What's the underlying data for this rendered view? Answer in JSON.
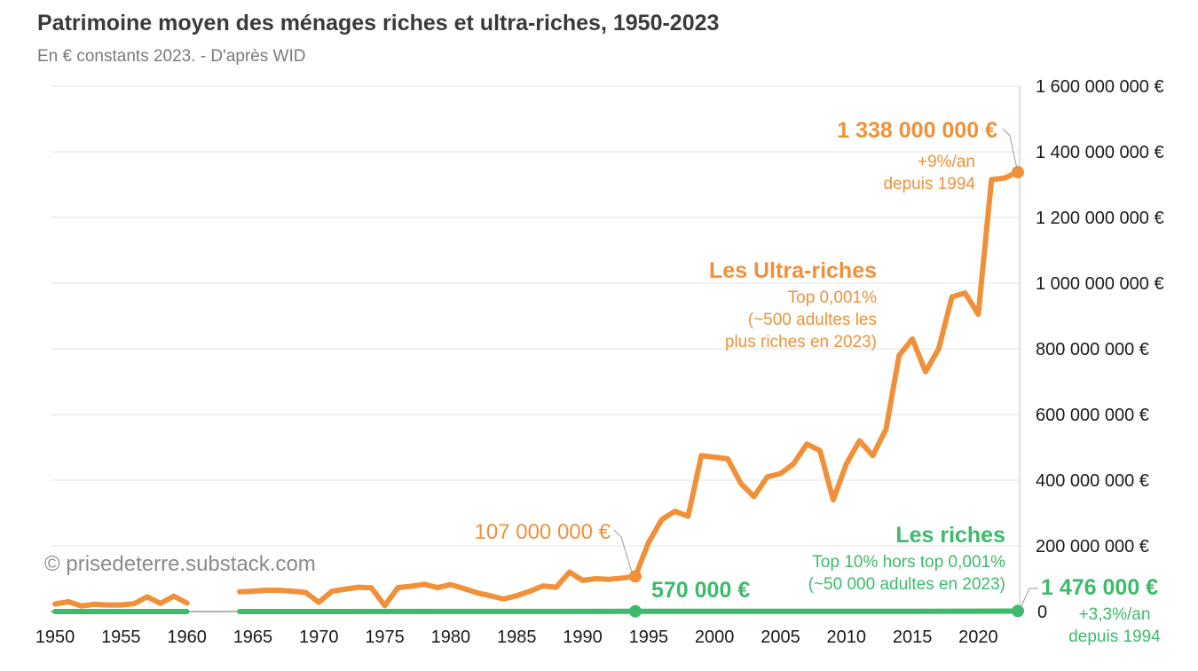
{
  "chart_data": {
    "type": "line",
    "title": "Patrimoine moyen des ménages riches et ultra-riches, 1950-2023",
    "subtitle": "En € constants 2023. - D'après WID",
    "ylim": [
      0,
      1600000000
    ],
    "xlim": [
      1950,
      2023
    ],
    "x_ticks": [
      1950,
      1955,
      1960,
      1965,
      1970,
      1975,
      1980,
      1985,
      1990,
      1995,
      2000,
      2005,
      2010,
      2015,
      2020
    ],
    "y_ticks": [
      {
        "value": 0,
        "label": "0"
      },
      {
        "value": 200000000,
        "label": "200 000 000 €"
      },
      {
        "value": 400000000,
        "label": "400 000 000 €"
      },
      {
        "value": 600000000,
        "label": "600 000 000 €"
      },
      {
        "value": 800000000,
        "label": "800 000 000 €"
      },
      {
        "value": 1000000000,
        "label": "1 000 000 000 €"
      },
      {
        "value": 1200000000,
        "label": "1 200 000 000 €"
      },
      {
        "value": 1400000000,
        "label": "1 400 000 000 €"
      },
      {
        "value": 1600000000,
        "label": "1 600 000 000 €"
      }
    ],
    "grid": true,
    "series": [
      {
        "name": "Les Ultra-riches",
        "color": "#f0913a",
        "segments": [
          {
            "x": [
              1950,
              1951,
              1952,
              1953,
              1954,
              1955,
              1956,
              1957,
              1958,
              1959,
              1960
            ],
            "y": [
              23000000,
              30000000,
              17000000,
              22000000,
              20000000,
              20000000,
              24000000,
              45000000,
              25000000,
              47000000,
              26000000
            ]
          },
          {
            "x": [
              1964,
              1965,
              1966,
              1967,
              1968,
              1969,
              1970,
              1971,
              1972,
              1973,
              1974,
              1975,
              1976,
              1977,
              1978,
              1979,
              1980,
              1981,
              1982,
              1983,
              1984,
              1985,
              1986,
              1987,
              1988,
              1989,
              1990,
              1991,
              1992,
              1993,
              1994
            ],
            "y": [
              60000000,
              62000000,
              65000000,
              65000000,
              62000000,
              58000000,
              28000000,
              62000000,
              68000000,
              74000000,
              72000000,
              18000000,
              73000000,
              77000000,
              83000000,
              73000000,
              82000000,
              70000000,
              57000000,
              48000000,
              38000000,
              48000000,
              62000000,
              78000000,
              74000000,
              120000000,
              95000000,
              100000000,
              98000000,
              102000000,
              107000000
            ]
          },
          {
            "x": [
              1994,
              1995,
              1996,
              1997,
              1998,
              1999,
              2000,
              2001,
              2002,
              2003,
              2004,
              2005,
              2006,
              2007,
              2008,
              2009,
              2010,
              2011,
              2012,
              2013,
              2014,
              2015,
              2016,
              2017,
              2018,
              2019,
              2020,
              2021,
              2022,
              2023
            ],
            "y": [
              107000000,
              210000000,
              280000000,
              305000000,
              290000000,
              475000000,
              470000000,
              465000000,
              390000000,
              350000000,
              410000000,
              420000000,
              450000000,
              510000000,
              490000000,
              340000000,
              450000000,
              520000000,
              475000000,
              555000000,
              780000000,
              830000000,
              730000000,
              800000000,
              958000000,
              970000000,
              905000000,
              1315000000,
              1320000000,
              1338000000
            ]
          }
        ]
      },
      {
        "name": "Les riches",
        "color": "#3dbb6a",
        "segments": [
          {
            "x": [
              1950,
              1960
            ],
            "y": [
              0,
              0
            ]
          },
          {
            "x": [
              1964,
              1994,
              2015,
              2020,
              2023
            ],
            "y": [
              0,
              570000,
              900000,
              1200000,
              1476000
            ]
          }
        ]
      }
    ],
    "annotations": {
      "ultra_end_value": "1 338 000 000 €",
      "ultra_growth": "+9%/an",
      "ultra_since": "depuis 1994",
      "ultra_name": "Les Ultra-riches",
      "ultra_desc_1": "Top 0,001%",
      "ultra_desc_2": "(~500 adultes les",
      "ultra_desc_3": "plus riches en 2023)",
      "ultra_1994_value": "107 000 000 €",
      "riches_name": "Les riches",
      "riches_desc_1": "Top 10% hors top 0,001%",
      "riches_desc_2": "(~50 000 adultes en 2023)",
      "riches_1994_value": "570 000 €",
      "riches_end_value": "1 476 000 €",
      "riches_growth": "+3,3%/an",
      "riches_since": "depuis 1994"
    },
    "watermark": "© prisedeterre.substack.com"
  }
}
